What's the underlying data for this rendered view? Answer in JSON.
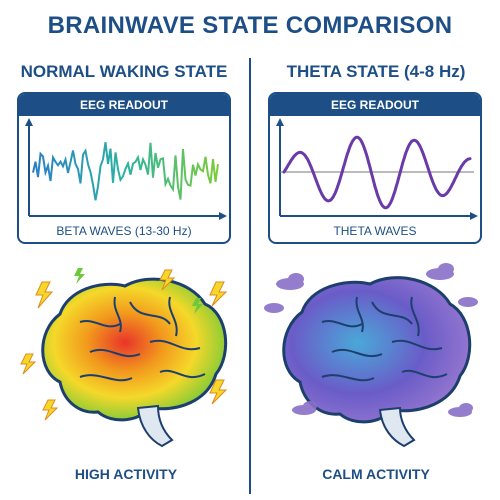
{
  "title": "BRAINWAVE STATE COMPARISON",
  "left": {
    "heading": "NORMAL WAKING STATE",
    "panel_header": "EEG READOUT",
    "panel_label": "BETA WAVES (13-30 Hz)",
    "caption": "HIGH ACTIVITY"
  },
  "right": {
    "heading": "THETA STATE (4-8 Hz)",
    "panel_header": "EEG READOUT",
    "panel_label": "THETA WAVES",
    "caption": "CALM ACTIVITY"
  },
  "colors": {
    "primary": "#1d4f86",
    "beta_gradient": [
      "#2a7fc9",
      "#2bb3a0",
      "#7ccc3a"
    ],
    "theta_wave": "#6a3aa8",
    "calm_brain": [
      "#5b4bb7",
      "#4aa8d8",
      "#9a7ad0"
    ],
    "active_brain": [
      "#e8352a",
      "#f29a1d",
      "#f5d82a",
      "#6dc83a"
    ]
  },
  "icons": [
    "lightning-icon",
    "cloud-icon",
    "brain-illustration"
  ]
}
